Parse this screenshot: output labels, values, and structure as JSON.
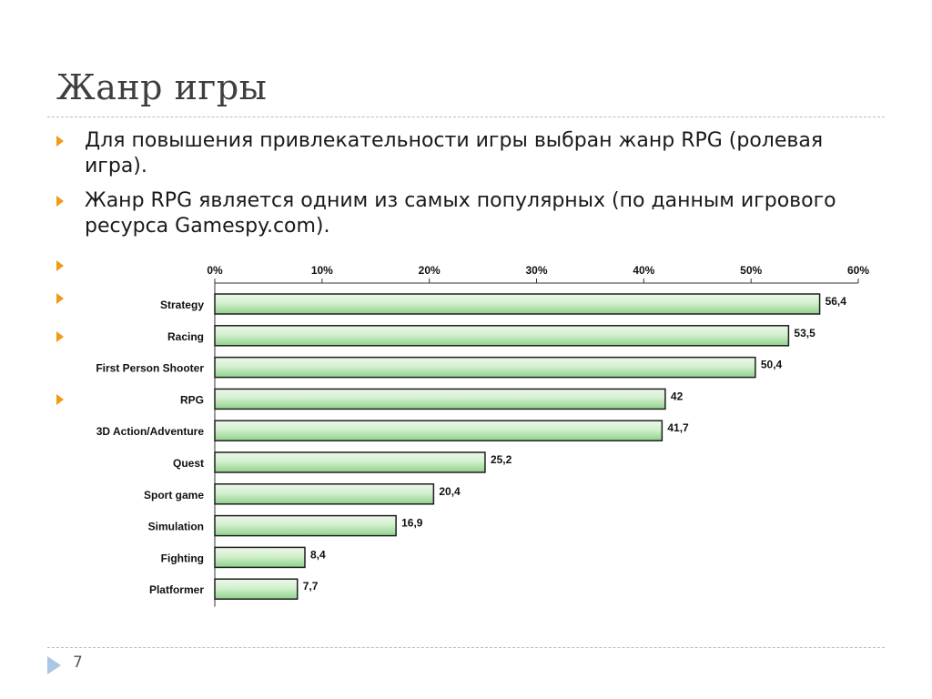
{
  "slide": {
    "title": "Жанр игры",
    "page_number": "7",
    "bullets": [
      "Для повышения привлекательности игры выбран жанр RPG (ролевая игра).",
      "Жанр RPG является одним из самых популярных (по данным игрового ресурса Gamespy.com)."
    ]
  },
  "colors": {
    "bullet": "#f19a16",
    "bar_fill_light": "#ecf8e9",
    "bar_fill_dark": "#8fd18b",
    "bar_border": "#1e1e1e",
    "nav_arrow": "#a9c7e2"
  },
  "icons": {
    "bullet": "orange-triangle-bullet-icon",
    "nav": "nav-forward-arrow-icon"
  },
  "chart_data": {
    "type": "bar",
    "orientation": "horizontal",
    "categories": [
      "Strategy",
      "Racing",
      "First Person Shooter",
      "RPG",
      "3D Action/Adventure",
      "Quest",
      "Sport game",
      "Simulation",
      "Fighting",
      "Platformer"
    ],
    "values": [
      56.4,
      53.5,
      50.4,
      42,
      41.7,
      25.2,
      20.4,
      16.9,
      8.4,
      7.7
    ],
    "value_labels": [
      "56,4",
      "53,5",
      "50,4",
      "42",
      "41,7",
      "25,2",
      "20,4",
      "16,9",
      "8,4",
      "7,7"
    ],
    "xticks": [
      "0%",
      "10%",
      "20%",
      "30%",
      "40%",
      "50%",
      "60%"
    ],
    "xlim": [
      0,
      60
    ],
    "x_axis_position": "top",
    "grid": false,
    "legend": false
  }
}
